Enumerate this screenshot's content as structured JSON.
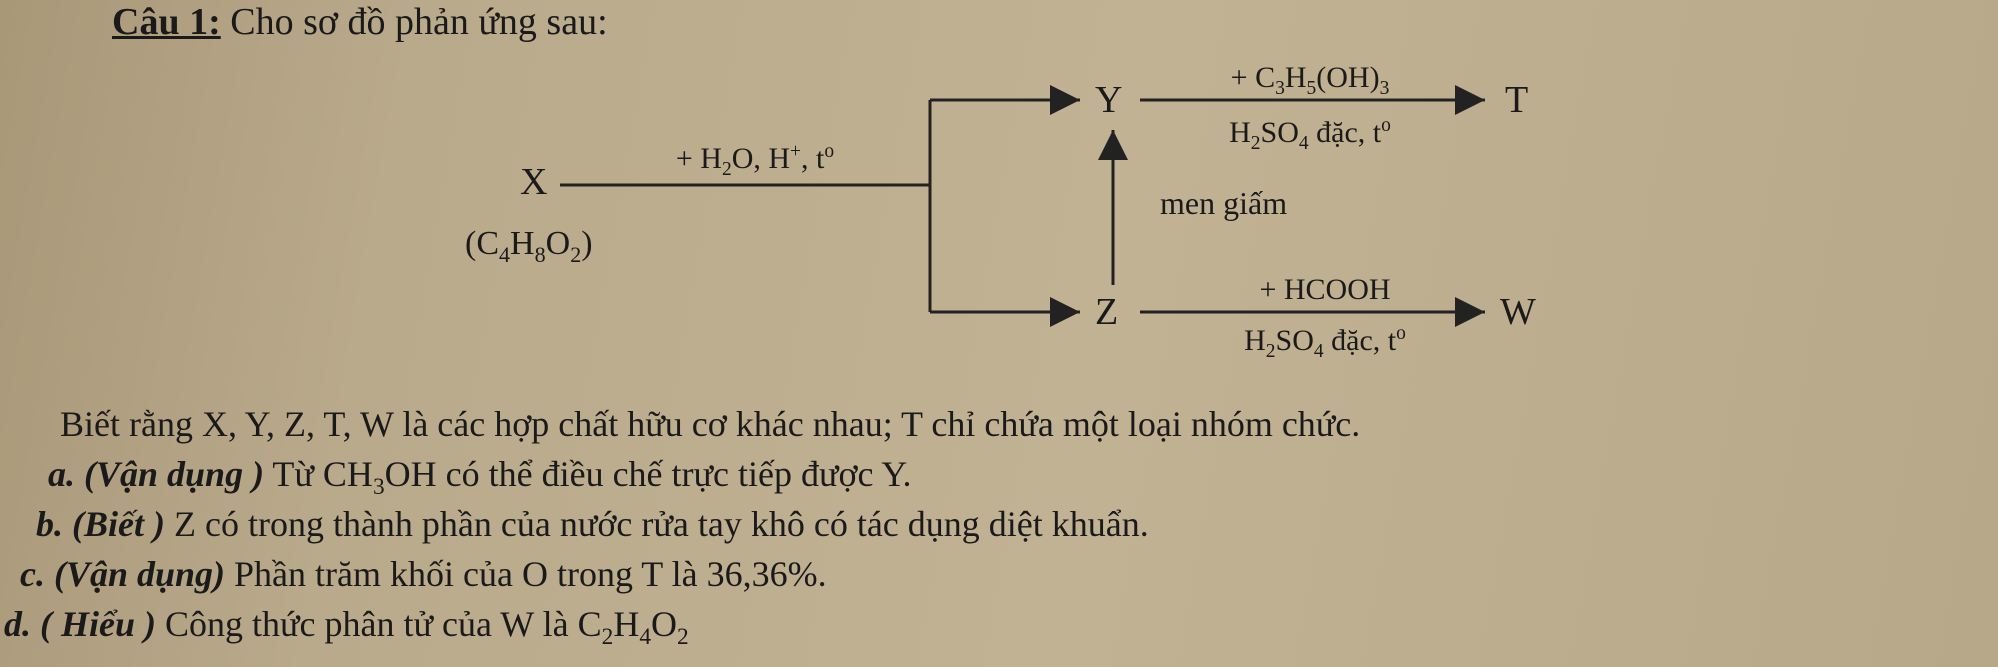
{
  "title": {
    "prefix": "Câu 1:",
    "rest": " Cho sơ đồ phản ứng sau:"
  },
  "diagram": {
    "X_label": "X",
    "X_formula_html": "(C<span class='sub'>4</span>H<span class='sub'>8</span>O<span class='sub'>2</span>)",
    "X_arrow_top_html": "+ H<span class='sub'>2</span>O, H<span class='sup'>+</span>, t<span class='sup'>o</span>",
    "Y_label": "Y",
    "Y_arrow_top_html": "+ C<span class='sub'>3</span>H<span class='sub'>5</span>(OH)<span class='sub'>3</span>",
    "Y_arrow_bot_html": "H<span class='sub'>2</span>SO<span class='sub'>4</span> đặc, t<span class='sup'>o</span>",
    "T_label": "T",
    "mid_label": "men giấm",
    "Z_label": "Z",
    "Z_arrow_top_html": "+ HCOOH",
    "Z_arrow_bot_html": "H<span class='sub'>2</span>SO<span class='sub'>4</span> đặc, t<span class='sup'>o</span>",
    "W_label": "W",
    "stroke": "#222222",
    "stroke_width": 3
  },
  "body": {
    "l1_html": "Biết rằng X, Y, Z, T, W là các hợp chất hữu cơ khác nhau; T chỉ chứa một loại nhóm chức.",
    "l2_prefix": "a. (Vận dụng )",
    "l2_rest_html": " Từ CH<span class='sub'>3</span>OH có thể điều chế trực tiếp được Y.",
    "l3_prefix": "b. (Biết )",
    "l3_rest": " Z có trong thành phần của nước rửa tay khô có tác dụng diệt khuẩn.",
    "l4_prefix": "c. (Vận dụng)",
    "l4_rest": " Phần trăm khối của O trong T là 36,36%.",
    "l5_prefix": "d. ( Hiểu )",
    "l5_rest_html": " Công thức phân tử của W là C<span class='sub'>2</span>H<span class='sub'>4</span>O<span class='sub'>2</span>"
  }
}
